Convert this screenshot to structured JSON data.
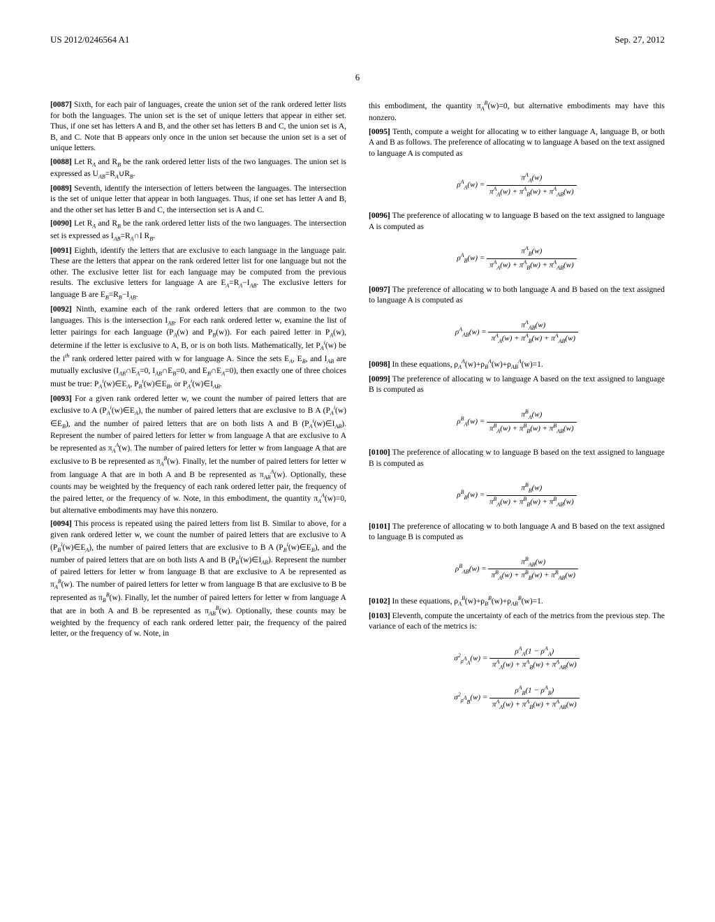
{
  "header": {
    "pub": "US 2012/0246564 A1",
    "date": "Sep. 27, 2012"
  },
  "page_num": "6",
  "left": {
    "p1": {
      "num": "[0087]",
      "text": " Sixth, for each pair of languages, create the union set of the rank ordered letter lists for both the languages. The union set is the set of unique letters that appear in either set. Thus, if one set has letters A and B, and the other set has letters B and C, the union set is A, B, and C. Note that B appears only once in the union set because the union set is a set of unique letters."
    },
    "p2a": {
      "num": "[0088]",
      "text": " Let R"
    },
    "p2b": " and R",
    "p2c": " be the rank ordered letter lists of the two languages. The union set is expressed as U",
    "p2d": "=R",
    "p2e": "∪R",
    "p2f": ".",
    "p3": {
      "num": "[0089]",
      "text": " Seventh, identify the intersection of letters between the languages. The intersection is the set of unique letter that appear in both languages. Thus, if one set has letter A and B, and the other set has letter B and C, the intersection set is A and C."
    },
    "p4a": {
      "num": "[0090]",
      "text": " Let R"
    },
    "p4b": " and R",
    "p4c": " be the rank ordered letter lists of the two languages. The intersection set is expressed as I",
    "p4d": "=R",
    "p4e": "∩I R",
    "p4f": ".",
    "p5a": {
      "num": "[0091]",
      "text": " Eighth, identify the letters that are exclusive to each language in the language pair. These are the letters that appear on the rank ordered letter list for one language but not the other. The exclusive letter list for each language may be computed from the previous results. The exclusive letters for language A are E"
    },
    "p5b": "=R",
    "p5c": "−I",
    "p5d": ". The exclusive letters for language B are E",
    "p5e": "=R",
    "p5f": "−I",
    "p5g": ".",
    "p6a": {
      "num": "[0092]",
      "text": " Ninth, examine each of the rank ordered letters that are common to the two languages. This is the intersection I"
    },
    "p6b": ". For each rank ordered letter w, examine the list of letter pairings for each language (P",
    "p6c": "(w) and P",
    "p6d": "(w)). For each paired letter in P",
    "p6e": "(w), determine if the letter is exclusive to A, B, or is on both lists. Mathematically, let P",
    "p6f": "(w) be the i",
    "p6g": " rank ordered letter paired with w for language A. Since the sets E",
    "p6h": ", E",
    "p6i": ", and I",
    "p6j": " are mutually exclusive (I",
    "p6k": "∩E",
    "p6l": "=0, I",
    "p6m": "∩E",
    "p6n": "=0, and E",
    "p6o": "∩E",
    "p6p": "=0), then exactly one of three choices must be true: P",
    "p6q": "(w)∈E",
    "p6r": ", P",
    "p6s": "(w)∈E",
    "p6t": ", or P",
    "p6u": "(w)∈I",
    "p6v": ".",
    "p7a": {
      "num": "[0093]",
      "text": " For a given rank ordered letter w, we count the number of paired letters that are exclusive to A (P"
    },
    "p7b": "(w)∈E",
    "p7c": "), the number of paired letters that are exclusive to B A (P",
    "p7d": "(w) ∈E",
    "p7e": "), and the number of paired letters that are on both lists A and B (P",
    "p7f": "(w)∈I",
    "p7g": "). Represent the number of paired letters for letter w from language A that are exclusive to A be represented as π",
    "p7h": "(w). The number of paired letters for letter w from language A that are exclusive to B be represented as π",
    "p7i": "(w). Finally, let the number of paired letters for letter w from language A that are in both A and B be represented as π",
    "p7j": "(w). Optionally, these counts may be weighted by the frequency of each rank ordered letter pair, the frequency of the paired letter, or the frequency of w. Note, in this embodiment, the quantity π",
    "p7k": "(w)=0, but alternative embodiments may have this nonzero.",
    "p8a": {
      "num": "[0094]",
      "text": " This process is repeated using the paired letters from list B. Similar to above, for a given rank ordered letter w, we count the number of paired letters that are exclusive to A (P"
    },
    "p8b": "(w)∈E",
    "p8c": "), the number of paired letters that are exclusive to B A (P",
    "p8d": "(w)∈E",
    "p8e": "), and the number of paired letters that are on both lists A and B (P",
    "p8f": "(w)∈I",
    "p8g": "). Represent the number of paired letters for letter w from language B that are exclusive to A be represented as π",
    "p8h": "(w). The number of paired letters for letter w from language B that are exclusive to B be represented as π",
    "p8i": "(w). Finally, let the number of paired letters for letter w from language A that are in both A and B be represented as π",
    "p8j": "(w). Optionally, these counts may be weighted by the frequency of each rank ordered letter pair, the frequency of the paired letter, or the frequency of w. Note, in"
  },
  "right": {
    "p1a": "this embodiment, the quantity π",
    "p1b": "(w)=0, but alternative embodiments may have this nonzero.",
    "p2": {
      "num": "[0095]",
      "text": " Tenth, compute a weight for allocating w to either language A, language B, or both A and B as follows. The preference of allocating w to language A based on the text assigned to language A is computed as"
    },
    "p3": {
      "num": "[0096]",
      "text": " The preference of allocating w to language B based on the text assigned to language A is computed as"
    },
    "p4": {
      "num": "[0097]",
      "text": " The preference of allocating w to both language A and B based on the text assigned to language A is computed as"
    },
    "p5a": {
      "num": "[0098]",
      "text": " In these equations, ρ"
    },
    "p5b": "(w)+ρ",
    "p5c": "(w)+ρ",
    "p5d": "(w)=1.",
    "p6": {
      "num": "[0099]",
      "text": " The preference of allocating w to language A based on the text assigned to language B is computed as"
    },
    "p7": {
      "num": "[0100]",
      "text": " The preference of allocating w to language B based on the text assigned to language B is computed as"
    },
    "p8": {
      "num": "[0101]",
      "text": " The preference of allocating w to both language A and B based on the text assigned to language B is computed as"
    },
    "p9a": {
      "num": "[0102]",
      "text": " In these equations, ρ"
    },
    "p9b": "(w)+ρ",
    "p9c": "(w)+ρ",
    "p9d": "(w)=1.",
    "p10": {
      "num": "[0103]",
      "text": " Eleventh, compute the uncertainty of each of the metrics from the previous step. The variance of each of the metrics is:"
    },
    "eq1": {
      "lhs": "ρ",
      "sub": "A",
      "sup": "A",
      "top_l": "π",
      "top_sub": "A",
      "top_sup": "A",
      "bot": "πᴬA(w) + πᴬB(w) + πᴬAB(w)"
    },
    "eq2": {
      "lhs": "ρ",
      "sub": "B",
      "sup": "A"
    },
    "eq3": {
      "lhs": "ρ",
      "sub": "AB",
      "sup": "A"
    },
    "eq4": {
      "lhs": "ρ",
      "sub": "A",
      "sup": "B"
    },
    "eq5": {
      "lhs": "ρ",
      "sub": "B",
      "sup": "B"
    },
    "eq6": {
      "lhs": "ρ",
      "sub": "AB",
      "sup": "B"
    },
    "eq7a": {
      "lhs": "σ²",
      "sub": "ρᴬA"
    },
    "eq7b": {
      "lhs": "σ²",
      "sub": "ρᴬB"
    }
  }
}
